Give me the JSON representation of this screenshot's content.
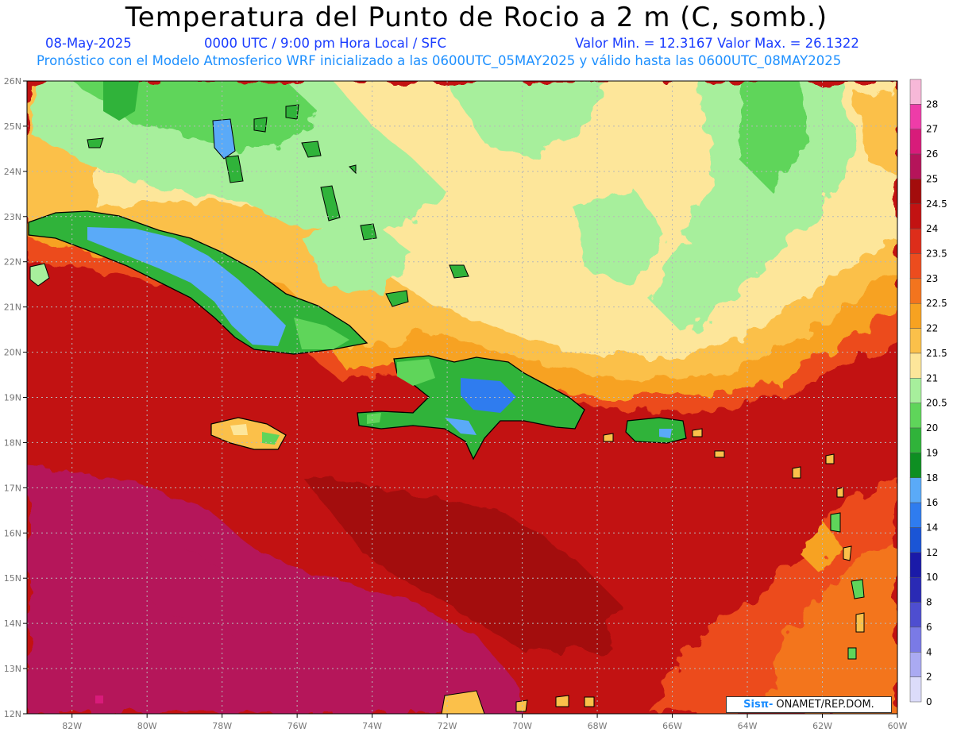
{
  "header": {
    "title": "Temperatura del Punto de Rocio a 2 m (C, somb.)",
    "date": "08-May-2025",
    "time": "0000 UTC / 9:00 pm Hora Local / SFC",
    "min_max": "Valor Min. = 12.3167  Valor Max. = 26.1322",
    "model_line": "Pronóstico con el Modelo Atmosferico WRF inicializado a las 0600UTC_05MAY2025 y válido hasta las  0600UTC_08MAY2025"
  },
  "map": {
    "lon_range": [
      -83.2,
      -60
    ],
    "lat_range": [
      12,
      26
    ],
    "lon_ticks": [
      "82W",
      "80W",
      "78W",
      "76W",
      "74W",
      "72W",
      "70W",
      "68W",
      "66W",
      "64W",
      "62W",
      "60W"
    ],
    "lat_ticks": [
      "12N",
      "13N",
      "14N",
      "15N",
      "16N",
      "17N",
      "18N",
      "19N",
      "20N",
      "21N",
      "22N",
      "23N",
      "24N",
      "25N",
      "26N"
    ],
    "grid": true
  },
  "colorbar": {
    "levels": [
      "28",
      "27",
      "26",
      "25",
      "24.5",
      "24",
      "23.5",
      "23",
      "22.5",
      "22",
      "21.5",
      "21",
      "20.5",
      "20",
      "19",
      "18",
      "16",
      "14",
      "12",
      "10",
      "8",
      "6",
      "4",
      "2",
      "0"
    ],
    "colors": [
      "#f7b8d8",
      "#ee3ca8",
      "#d81b7a",
      "#b5145a",
      "#a30c0c",
      "#c21212",
      "#dd2d1a",
      "#ec4c1e",
      "#f3741e",
      "#f7a221",
      "#fbc04a",
      "#fde69a",
      "#a7ef9c",
      "#5fd55a",
      "#30b33a",
      "#0e8f22",
      "#5aaaf8",
      "#2f7cef",
      "#1a55d6",
      "#1a1aa8",
      "#2a2ab5",
      "#4e4ed0",
      "#7a7ae6",
      "#aaaaf2",
      "#dcdcfa"
    ]
  },
  "watermark": {
    "sis": "Sisπ-",
    "org": "ONAMET/REP.DOM."
  }
}
